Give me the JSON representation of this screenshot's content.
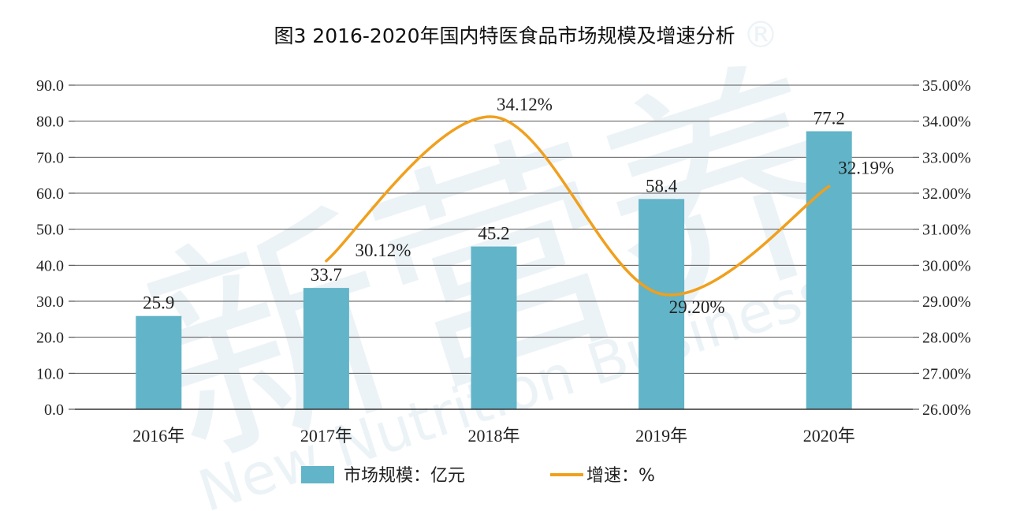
{
  "title": "图3 2016-2020年国内特医食品市场规模及增速分析",
  "watermark": {
    "cn": "新营养",
    "en": "New Nutrition Business",
    "mark": "®"
  },
  "colors": {
    "bar": "#62b4c8",
    "line": "#f0a01e",
    "axis": "#333333",
    "grid": "#555555"
  },
  "chart_data": {
    "type": "bar",
    "categories": [
      "2016年",
      "2017年",
      "2018年",
      "2019年",
      "2020年"
    ],
    "series": [
      {
        "name": "市场规模：亿元",
        "type": "bar",
        "axis": "left",
        "values": [
          25.9,
          33.7,
          45.2,
          58.4,
          77.2
        ],
        "labels": [
          "25.9",
          "33.7",
          "45.2",
          "58.4",
          "77.2"
        ]
      },
      {
        "name": "增速：%",
        "type": "line",
        "axis": "right",
        "smooth": true,
        "values": [
          null,
          30.12,
          34.12,
          29.2,
          32.19
        ],
        "labels": [
          "",
          "30.12%",
          "34.12%",
          "29.20%",
          "32.19%"
        ]
      }
    ],
    "ylim": [
      0,
      90
    ],
    "yticks": [
      "0.0",
      "10.0",
      "20.0",
      "30.0",
      "40.0",
      "50.0",
      "60.0",
      "70.0",
      "80.0",
      "90.0"
    ],
    "y2lim": [
      26,
      35
    ],
    "y2ticks": [
      "26.00%",
      "27.00%",
      "28.00%",
      "29.00%",
      "30.00%",
      "31.00%",
      "32.00%",
      "33.00%",
      "34.00%",
      "35.00%"
    ],
    "grid": true,
    "legend_position": "bottom"
  }
}
